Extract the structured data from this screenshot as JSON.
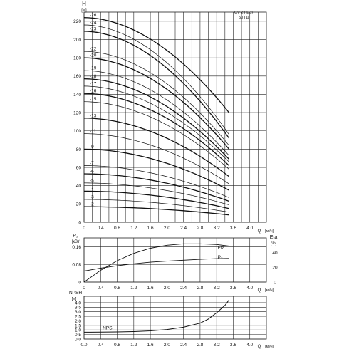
{
  "chart_data": [
    {
      "type": "line",
      "panel": "head",
      "ylabel": "H",
      "yunit": "[м]",
      "xlabel": "Q",
      "xunit": "[м³/ч]",
      "annotation": [
        "CV 2 (IE3)",
        "50 Гц"
      ],
      "xlim": [
        0,
        4.4
      ],
      "ylim": [
        0,
        230
      ],
      "grid": true,
      "x_ticks": [
        0,
        0.4,
        0.8,
        1.2,
        1.6,
        2.0,
        2.4,
        2.8,
        3.2,
        3.6,
        4.0
      ],
      "x_tick_labels": [
        "0",
        "0.4",
        "0.8",
        "1.2",
        "1.6",
        "2.0",
        "2.4",
        "2.8",
        "3.2",
        "3.6",
        "4.0"
      ],
      "y_ticks": [
        0,
        20,
        40,
        60,
        80,
        100,
        120,
        140,
        160,
        180,
        200,
        220
      ],
      "y_tick_labels": [
        "0",
        "20",
        "40",
        "60",
        "80",
        "100",
        "120",
        "140",
        "160",
        "180",
        "200",
        "220"
      ],
      "series": [
        {
          "name": "-2",
          "shutoff": 17,
          "end": 8
        },
        {
          "name": "-3",
          "shutoff": 25,
          "end": 11
        },
        {
          "name": "-4",
          "shutoff": 34,
          "end": 15
        },
        {
          "name": "-5",
          "shutoff": 43,
          "end": 19
        },
        {
          "name": "-6",
          "shutoff": 53,
          "end": 23
        },
        {
          "name": "-7",
          "shutoff": 62,
          "end": 27
        },
        {
          "name": "-9",
          "shutoff": 80,
          "end": 35
        },
        {
          "name": "-11",
          "shutoff": 97,
          "end": 42
        },
        {
          "name": "-13",
          "shutoff": 114,
          "end": 50
        },
        {
          "name": "-15",
          "shutoff": 132,
          "end": 58
        },
        {
          "name": "-16",
          "shutoff": 141,
          "end": 62
        },
        {
          "name": "-17",
          "shutoff": 149,
          "end": 66
        },
        {
          "name": "-18",
          "shutoff": 157,
          "end": 69
        },
        {
          "name": "-19",
          "shutoff": 166,
          "end": 73
        },
        {
          "name": "-20",
          "shutoff": 180,
          "end": 80
        },
        {
          "name": "-22",
          "shutoff": 187,
          "end": 84
        },
        {
          "name": "-23",
          "shutoff": 209,
          "end": 92
        },
        {
          "name": "-24",
          "shutoff": 216,
          "end": 96
        },
        {
          "name": "-26",
          "shutoff": 224,
          "end": 120
        }
      ]
    },
    {
      "type": "line",
      "panel": "power-efficiency",
      "ylabel": "P₂",
      "yunit": "[кВт]",
      "y2label": "Eta",
      "y2unit": "[%]",
      "xlabel": "Q",
      "xunit": "[м³/ч]",
      "xlim": [
        0,
        4.4
      ],
      "ylim": [
        0,
        0.2
      ],
      "y2lim": [
        0,
        60
      ],
      "grid": true,
      "x_ticks": [
        0,
        0.4,
        0.8,
        1.2,
        1.6,
        2.0,
        2.4,
        2.8,
        3.2,
        3.6,
        4.0
      ],
      "x_tick_labels": [
        "0",
        "0.4",
        "0.8",
        "1.2",
        "1.6",
        "2.0",
        "2.4",
        "2.8",
        "3.2",
        "3.6",
        "4.0"
      ],
      "y_ticks": [
        0,
        0.08,
        0.16
      ],
      "y_tick_labels": [
        "0",
        "0.08",
        "0.16"
      ],
      "y2_ticks": [
        0,
        20,
        40
      ],
      "y2_tick_labels": [
        "0",
        "20",
        "40"
      ],
      "series": [
        {
          "name": "Eta",
          "axis": "right",
          "x": [
            0,
            0.4,
            0.8,
            1.2,
            1.6,
            2.0,
            2.4,
            2.8,
            3.2,
            3.5
          ],
          "y": [
            0,
            16,
            29,
            39,
            46,
            50,
            52,
            52,
            51,
            49
          ]
        },
        {
          "name": "P₂",
          "axis": "left",
          "x": [
            0,
            0.4,
            0.8,
            1.2,
            1.6,
            2.0,
            2.4,
            2.8,
            3.2,
            3.5
          ],
          "y": [
            0.05,
            0.063,
            0.074,
            0.083,
            0.09,
            0.095,
            0.099,
            0.103,
            0.106,
            0.107
          ]
        }
      ]
    },
    {
      "type": "line",
      "panel": "npsh",
      "ylabel": "NPSH",
      "yunit": "[м]",
      "xlabel": "Q",
      "xunit": "[м³/ч]",
      "xlim": [
        0,
        4.4
      ],
      "ylim": [
        0,
        4.7
      ],
      "grid": true,
      "x_ticks": [
        0,
        0.4,
        0.8,
        1.2,
        1.6,
        2.0,
        2.4,
        2.8,
        3.2,
        3.6,
        4.0
      ],
      "x_tick_labels": [
        "0.0",
        "0.4",
        "0.8",
        "1.2",
        "1.6",
        "2.0",
        "2.4",
        "2.8",
        "3.2",
        "3.6",
        "4.0"
      ],
      "y_ticks": [
        0,
        0.5,
        1.0,
        1.5,
        2.0,
        2.5,
        3.0,
        3.5,
        4.0
      ],
      "y_tick_labels": [
        "0.0",
        "0.5",
        "1.0",
        "1.5",
        "2.0",
        "2.5",
        "3.0",
        "3.5",
        "4.0"
      ],
      "series": [
        {
          "name": "NPSH",
          "x": [
            0,
            0.4,
            0.8,
            1.2,
            1.6,
            2.0,
            2.4,
            2.8,
            3.0,
            3.2,
            3.4,
            3.5
          ],
          "y": [
            0.75,
            0.76,
            0.78,
            0.82,
            0.9,
            1.05,
            1.3,
            1.75,
            2.2,
            2.9,
            3.7,
            4.3
          ]
        }
      ]
    }
  ]
}
